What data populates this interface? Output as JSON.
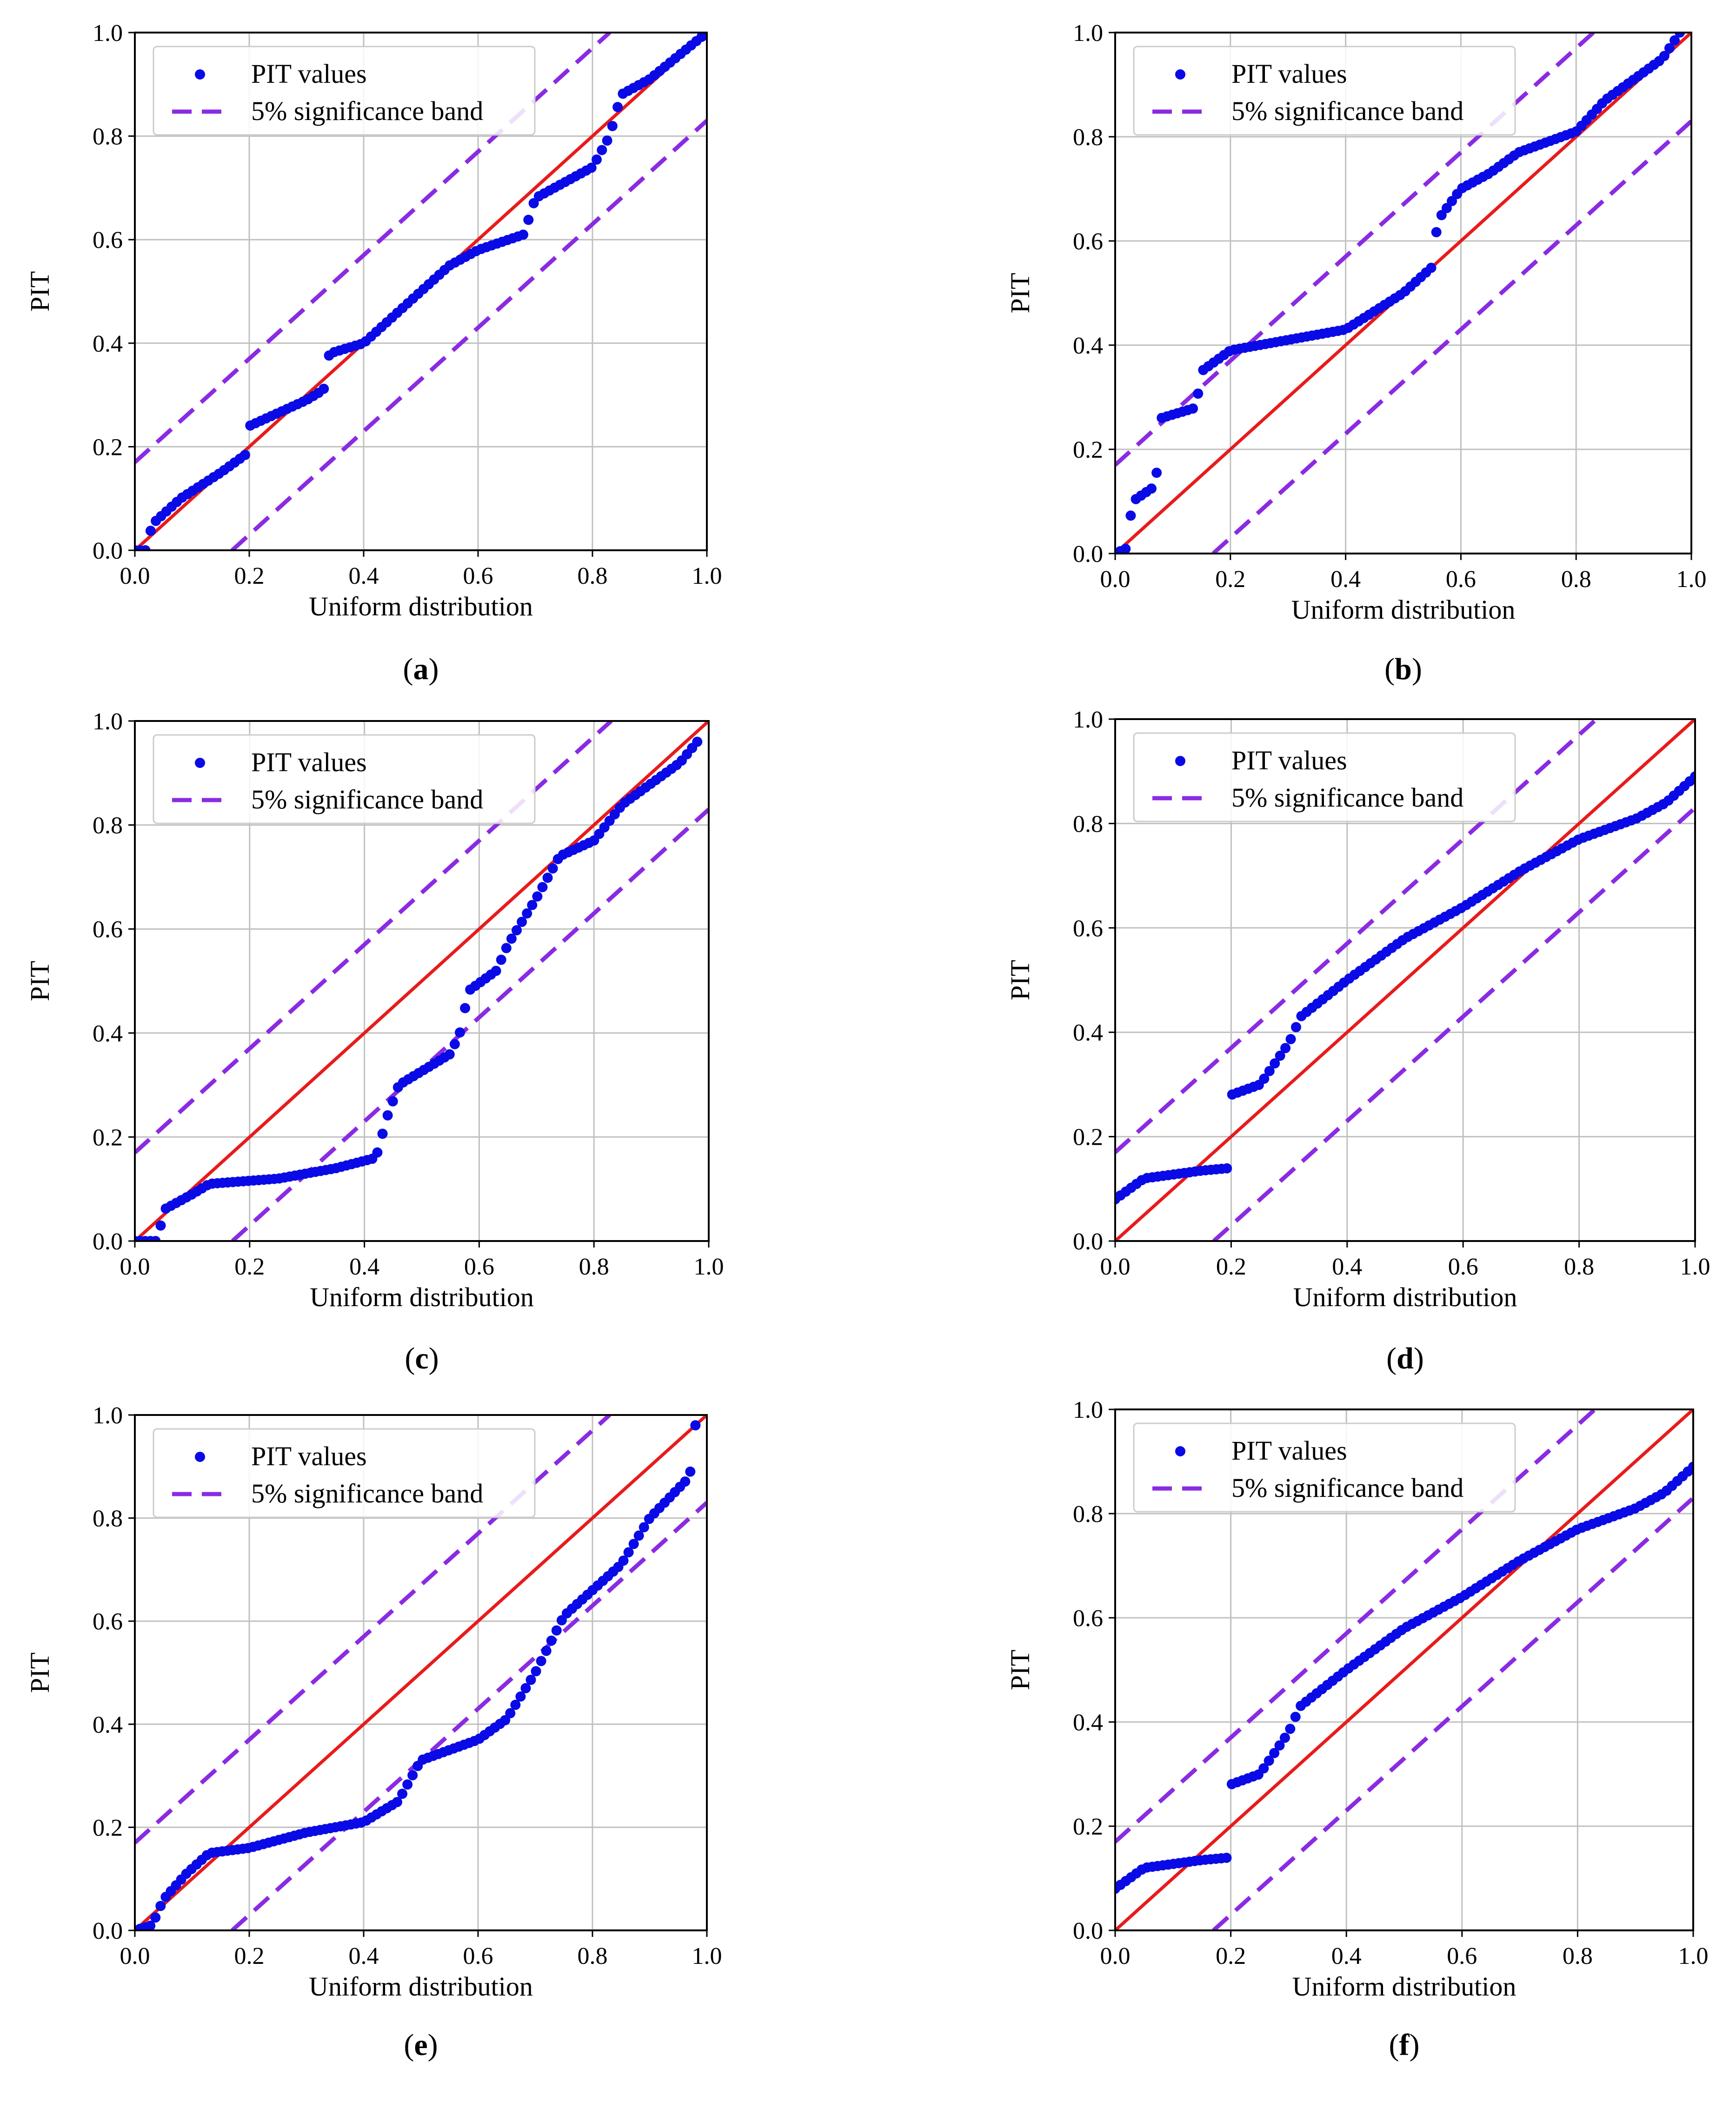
{
  "figure": {
    "colors": {
      "points": "#0a0ae6",
      "reference": "#e81b1b",
      "band": "#8a2be2",
      "grid": "#c0c0c0",
      "frame": "#000000"
    },
    "legend_position": "top-left"
  },
  "chart_data": [
    {
      "panel": "a",
      "type": "scatter",
      "xlabel": "Uniform distribution",
      "ylabel": "PIT",
      "xlim": [
        0,
        1
      ],
      "ylim": [
        0,
        1
      ],
      "xticks": [
        "0.0",
        "0.2",
        "0.4",
        "0.6",
        "0.8",
        "1.0"
      ],
      "yticks": [
        "0.0",
        "0.2",
        "0.4",
        "0.6",
        "0.8",
        "1.0"
      ],
      "grid": true,
      "legend": [
        "PIT values",
        "5% significance band"
      ],
      "reference_line": [
        [
          0,
          0
        ],
        [
          1,
          1
        ]
      ],
      "band_offset": 0.17,
      "pit_curve": [
        [
          0,
          0
        ],
        [
          0.02,
          0.0
        ],
        [
          0.03,
          0.05
        ],
        [
          0.08,
          0.1
        ],
        [
          0.15,
          0.15
        ],
        [
          0.2,
          0.19
        ],
        [
          0.2,
          0.24
        ],
        [
          0.3,
          0.29
        ],
        [
          0.33,
          0.31
        ],
        [
          0.34,
          0.38
        ],
        [
          0.4,
          0.4
        ],
        [
          0.5,
          0.5
        ],
        [
          0.55,
          0.55
        ],
        [
          0.6,
          0.58
        ],
        [
          0.68,
          0.61
        ],
        [
          0.7,
          0.68
        ],
        [
          0.8,
          0.74
        ],
        [
          0.83,
          0.8
        ],
        [
          0.85,
          0.88
        ],
        [
          0.9,
          0.91
        ],
        [
          1,
          1
        ]
      ]
    },
    {
      "panel": "b",
      "type": "scatter",
      "xlabel": "Uniform distribution",
      "ylabel": "PIT",
      "xlim": [
        0,
        1
      ],
      "ylim": [
        0,
        1
      ],
      "xticks": [
        "0.0",
        "0.2",
        "0.4",
        "0.6",
        "0.8",
        "1.0"
      ],
      "yticks": [
        "0.0",
        "0.2",
        "0.4",
        "0.6",
        "0.8",
        "1.0"
      ],
      "grid": true,
      "legend": [
        "PIT values",
        "5% significance band"
      ],
      "reference_line": [
        [
          0,
          0
        ],
        [
          1,
          1
        ]
      ],
      "band_offset": 0.17,
      "pit_curve": [
        [
          0,
          0
        ],
        [
          0.02,
          0.01
        ],
        [
          0.03,
          0.1
        ],
        [
          0.07,
          0.13
        ],
        [
          0.08,
          0.26
        ],
        [
          0.14,
          0.28
        ],
        [
          0.15,
          0.35
        ],
        [
          0.2,
          0.39
        ],
        [
          0.3,
          0.41
        ],
        [
          0.4,
          0.43
        ],
        [
          0.5,
          0.5
        ],
        [
          0.55,
          0.55
        ],
        [
          0.56,
          0.64
        ],
        [
          0.6,
          0.7
        ],
        [
          0.65,
          0.73
        ],
        [
          0.7,
          0.77
        ],
        [
          0.8,
          0.81
        ],
        [
          0.85,
          0.87
        ],
        [
          0.95,
          0.95
        ],
        [
          0.98,
          1.0
        ]
      ]
    },
    {
      "panel": "c",
      "type": "scatter",
      "xlabel": "Uniform distribution",
      "ylabel": "PIT",
      "xlim": [
        0,
        1
      ],
      "ylim": [
        0,
        1
      ],
      "xticks": [
        "0.0",
        "0.2",
        "0.4",
        "0.6",
        "0.8",
        "1.0"
      ],
      "yticks": [
        "0.0",
        "0.2",
        "0.4",
        "0.6",
        "0.8",
        "1.0"
      ],
      "grid": true,
      "legend": [
        "PIT values",
        "5% significance band"
      ],
      "reference_line": [
        [
          0,
          0
        ],
        [
          1,
          1
        ]
      ],
      "band_offset": 0.17,
      "pit_curve": [
        [
          0,
          0
        ],
        [
          0.04,
          0.0
        ],
        [
          0.05,
          0.06
        ],
        [
          0.1,
          0.09
        ],
        [
          0.13,
          0.11
        ],
        [
          0.25,
          0.12
        ],
        [
          0.35,
          0.14
        ],
        [
          0.42,
          0.16
        ],
        [
          0.44,
          0.24
        ],
        [
          0.46,
          0.3
        ],
        [
          0.55,
          0.36
        ],
        [
          0.57,
          0.41
        ],
        [
          0.58,
          0.48
        ],
        [
          0.63,
          0.52
        ],
        [
          0.65,
          0.57
        ],
        [
          0.7,
          0.66
        ],
        [
          0.74,
          0.74
        ],
        [
          0.8,
          0.77
        ],
        [
          0.85,
          0.84
        ],
        [
          0.95,
          0.92
        ],
        [
          0.98,
          0.96
        ]
      ]
    },
    {
      "panel": "d",
      "type": "scatter",
      "xlabel": "Uniform distribution",
      "ylabel": "PIT",
      "xlim": [
        0,
        1
      ],
      "ylim": [
        0,
        1
      ],
      "xticks": [
        "0.0",
        "0.2",
        "0.4",
        "0.6",
        "0.8",
        "1.0"
      ],
      "yticks": [
        "0.0",
        "0.2",
        "0.4",
        "0.6",
        "0.8",
        "1.0"
      ],
      "grid": true,
      "legend": [
        "PIT values",
        "5% significance band"
      ],
      "reference_line": [
        [
          0,
          0
        ],
        [
          1,
          1
        ]
      ],
      "band_offset": 0.17,
      "pit_curve": [
        [
          0,
          0.08
        ],
        [
          0.05,
          0.12
        ],
        [
          0.15,
          0.135
        ],
        [
          0.2,
          0.14
        ],
        [
          0.2,
          0.28
        ],
        [
          0.25,
          0.3
        ],
        [
          0.3,
          0.38
        ],
        [
          0.32,
          0.43
        ],
        [
          0.4,
          0.5
        ],
        [
          0.5,
          0.58
        ],
        [
          0.6,
          0.64
        ],
        [
          0.7,
          0.71
        ],
        [
          0.8,
          0.77
        ],
        [
          0.9,
          0.81
        ],
        [
          0.95,
          0.84
        ],
        [
          1.0,
          0.89
        ]
      ]
    },
    {
      "panel": "e",
      "type": "scatter",
      "xlabel": "Uniform distribution",
      "ylabel": "PIT",
      "xlim": [
        0,
        1
      ],
      "ylim": [
        0,
        1
      ],
      "xticks": [
        "0.0",
        "0.2",
        "0.4",
        "0.6",
        "0.8",
        "1.0"
      ],
      "yticks": [
        "0.0",
        "0.2",
        "0.4",
        "0.6",
        "0.8",
        "1.0"
      ],
      "grid": true,
      "legend": [
        "PIT values",
        "5% significance band"
      ],
      "reference_line": [
        [
          0,
          0
        ],
        [
          1,
          1
        ]
      ],
      "band_offset": 0.17,
      "pit_curve": [
        [
          0,
          0
        ],
        [
          0.03,
          0.01
        ],
        [
          0.05,
          0.06
        ],
        [
          0.09,
          0.11
        ],
        [
          0.13,
          0.15
        ],
        [
          0.2,
          0.16
        ],
        [
          0.3,
          0.19
        ],
        [
          0.4,
          0.21
        ],
        [
          0.46,
          0.25
        ],
        [
          0.5,
          0.33
        ],
        [
          0.6,
          0.37
        ],
        [
          0.65,
          0.41
        ],
        [
          0.7,
          0.5
        ],
        [
          0.75,
          0.61
        ],
        [
          0.8,
          0.66
        ],
        [
          0.85,
          0.71
        ],
        [
          0.9,
          0.8
        ],
        [
          0.97,
          0.88
        ],
        [
          0.98,
          0.98
        ]
      ]
    },
    {
      "panel": "f",
      "type": "scatter",
      "xlabel": "Uniform distribution",
      "ylabel": "PIT",
      "xlim": [
        0,
        1
      ],
      "ylim": [
        0,
        1
      ],
      "xticks": [
        "0.0",
        "0.2",
        "0.4",
        "0.6",
        "0.8",
        "1.0"
      ],
      "yticks": [
        "0.0",
        "0.2",
        "0.4",
        "0.6",
        "0.8",
        "1.0"
      ],
      "grid": true,
      "legend": [
        "PIT values",
        "5% significance band"
      ],
      "reference_line": [
        [
          0,
          0
        ],
        [
          1,
          1
        ]
      ],
      "band_offset": 0.17,
      "pit_curve": [
        [
          0,
          0.08
        ],
        [
          0.05,
          0.12
        ],
        [
          0.15,
          0.135
        ],
        [
          0.2,
          0.14
        ],
        [
          0.2,
          0.28
        ],
        [
          0.25,
          0.3
        ],
        [
          0.3,
          0.38
        ],
        [
          0.32,
          0.43
        ],
        [
          0.4,
          0.5
        ],
        [
          0.5,
          0.58
        ],
        [
          0.6,
          0.64
        ],
        [
          0.7,
          0.71
        ],
        [
          0.8,
          0.77
        ],
        [
          0.9,
          0.81
        ],
        [
          0.95,
          0.84
        ],
        [
          1.0,
          0.89
        ]
      ]
    }
  ]
}
